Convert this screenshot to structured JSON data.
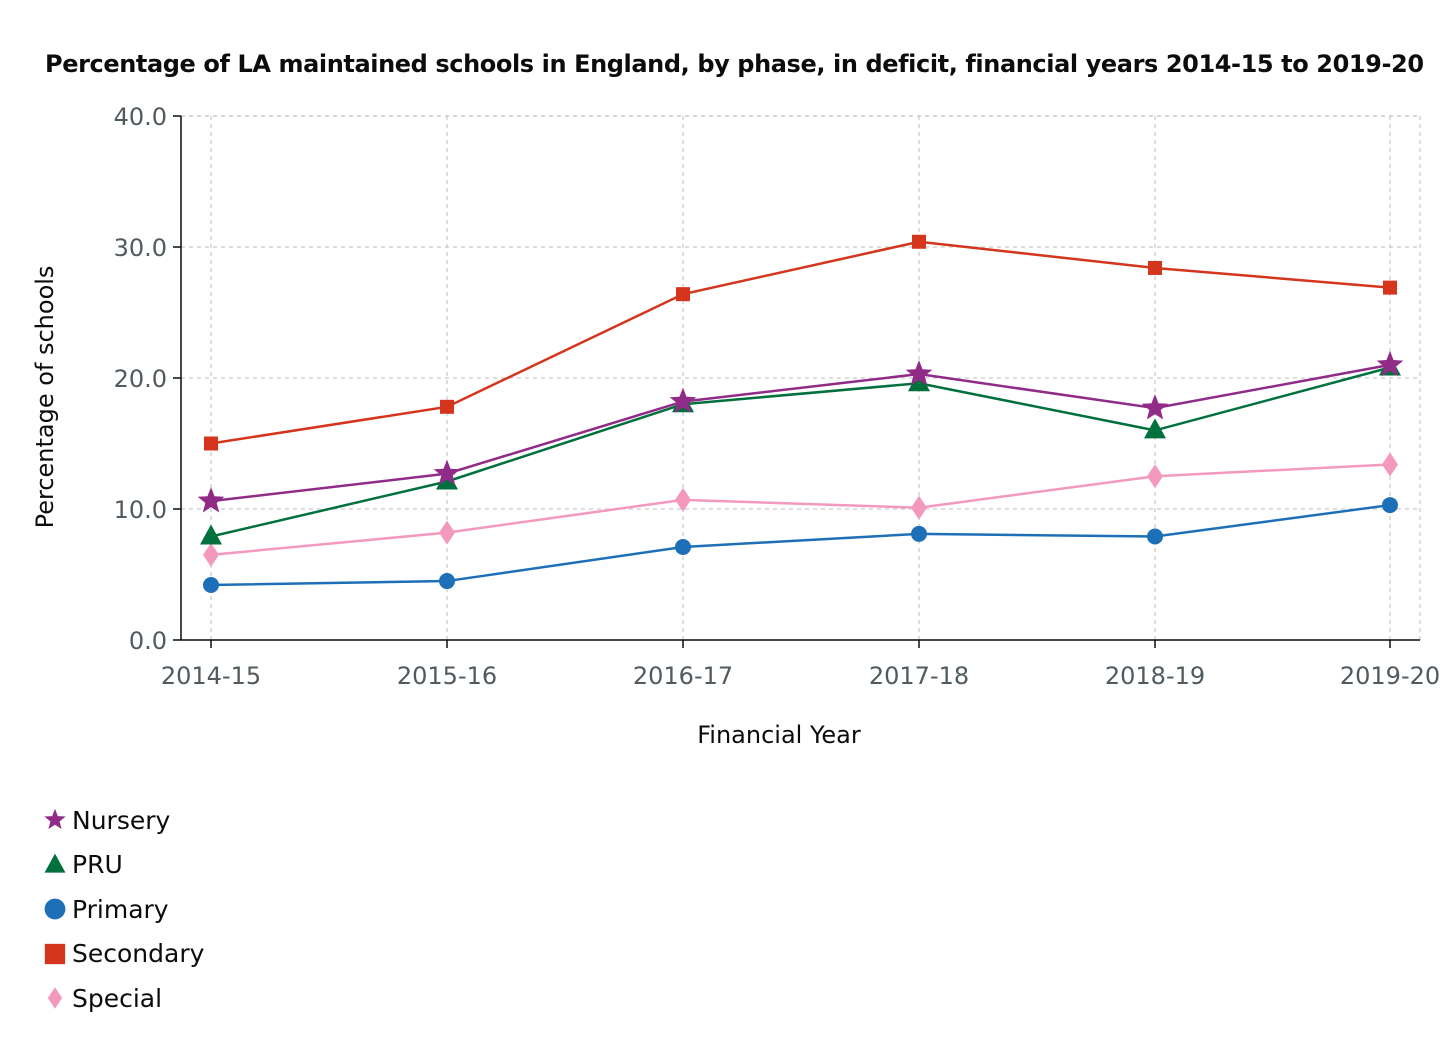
{
  "chart_data": {
    "type": "line",
    "title": "Percentage of LA maintained schools in England, by phase, in deficit, financial years 2014-15 to 2019-20",
    "xlabel": "Financial Year",
    "ylabel": "Percentage of schools",
    "categories": [
      "2014-15",
      "2015-16",
      "2016-17",
      "2017-18",
      "2018-19",
      "2019-20"
    ],
    "ylim": [
      0,
      40
    ],
    "yticks": [
      "0.0",
      "10.0",
      "20.0",
      "30.0",
      "40.0"
    ],
    "grid": true,
    "legend_position": "bottom-left",
    "series": [
      {
        "name": "Nursery",
        "marker": "star",
        "color": "#912b88",
        "values": [
          10.6,
          12.7,
          18.2,
          20.3,
          17.7,
          21.0
        ]
      },
      {
        "name": "PRU",
        "marker": "triangle",
        "color": "#00703c",
        "values": [
          7.9,
          12.1,
          18.0,
          19.6,
          16.0,
          20.8
        ]
      },
      {
        "name": "Primary",
        "marker": "circle",
        "color": "#1d70b8",
        "values": [
          4.2,
          4.5,
          7.1,
          8.1,
          7.9,
          10.3
        ]
      },
      {
        "name": "Secondary",
        "marker": "square",
        "color": "#d4351c",
        "values": [
          15.0,
          17.8,
          26.4,
          30.4,
          28.4,
          26.9
        ]
      },
      {
        "name": "Special",
        "marker": "diamond",
        "color": "#f499be",
        "values": [
          6.5,
          8.2,
          10.7,
          10.1,
          12.5,
          13.4
        ]
      }
    ]
  }
}
